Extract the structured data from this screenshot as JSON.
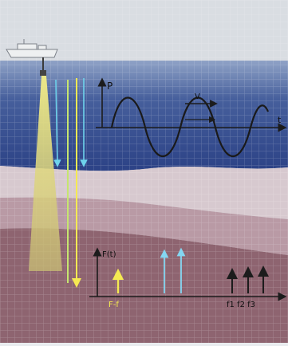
{
  "diagram": {
    "labels": {
      "wave_axis_y": "P",
      "wave_axis_x": "t",
      "wave_velocity": "V",
      "spectrum_axis_y": "F(t)",
      "spectrum_group_left": "F-f",
      "spectrum_group_right": "f1 f2 f3"
    },
    "colors": {
      "background_grid": "#d9dde2",
      "water_top": "#8fa2c6",
      "water_mid": "#465f9c",
      "water_deep": "#2c4286",
      "layer_pink": "#d7c9cf",
      "layer_mauve": "#b99aa5",
      "layer_brown": "#8e6470",
      "beam_yellow": "#f2ed86",
      "arrow_blue": "#6ed3ec",
      "arrow_cyan": "#84d6f1",
      "arrow_yellow": "#f5ea52",
      "ship_white": "#eef0f1",
      "line_dark": "#1c1c1c"
    },
    "icons": [
      "ship-icon",
      "transducer-icon"
    ]
  }
}
